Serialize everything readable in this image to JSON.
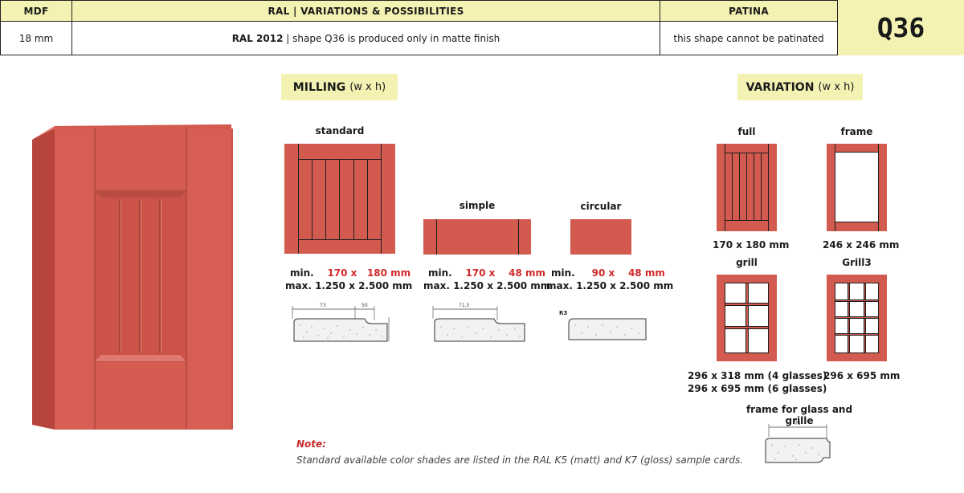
{
  "header": {
    "col_material": "MDF",
    "col_ral": "RAL | VARIATIONS & POSSIBILITIES",
    "col_patina": "PATINA",
    "material_value": "18 mm",
    "ral_code": "RAL 2012",
    "ral_note": " | shape Q36 is produced only in matte finish",
    "patina_value": "this shape cannot be patinated",
    "shape_code": "Q36"
  },
  "milling": {
    "title": "MILLING",
    "unit": "(w x h)",
    "items": [
      {
        "name": "standard",
        "min_label": "min.",
        "min_w": "170 x",
        "min_h": "180 mm",
        "max": "max. 1.250 x 2.500 mm",
        "profile_dims": [
          "73",
          "50"
        ]
      },
      {
        "name": "simple",
        "min_label": "min.",
        "min_w": "170 x",
        "min_h": "48 mm",
        "max": "max. 1.250 x 2.500 mm",
        "profile_dims": [
          "71,5"
        ]
      },
      {
        "name": "circular",
        "min_label": "min.",
        "min_w": "90 x",
        "min_h": "48 mm",
        "max": "max. 1.250 x 2.500 mm",
        "profile_dims": [
          "R3"
        ]
      }
    ]
  },
  "variation": {
    "title": "VARIATION",
    "unit": "(w x h)",
    "items": [
      {
        "name": "full",
        "dims": [
          "170 x 180 mm"
        ]
      },
      {
        "name": "frame",
        "dims": [
          "246 x 246 mm"
        ]
      },
      {
        "name": "grill",
        "dims": [
          "296 x 318 mm (4 glasses)",
          "296 x 695 mm (6 glasses)"
        ]
      },
      {
        "name": "Grill3",
        "dims": [
          "296 x 695 mm"
        ]
      }
    ],
    "frame_glass_title": "frame for glass and grille",
    "frame_glass_dim": "73"
  },
  "note": {
    "title": "Note:",
    "text": "Standard available color shades are listed in the RAL K5 (matt) and K7 (gloss) sample cards."
  },
  "colors": {
    "panel": "#d35a4f",
    "highlight": "#f3f2b3",
    "red_text": "#d22a2a"
  }
}
